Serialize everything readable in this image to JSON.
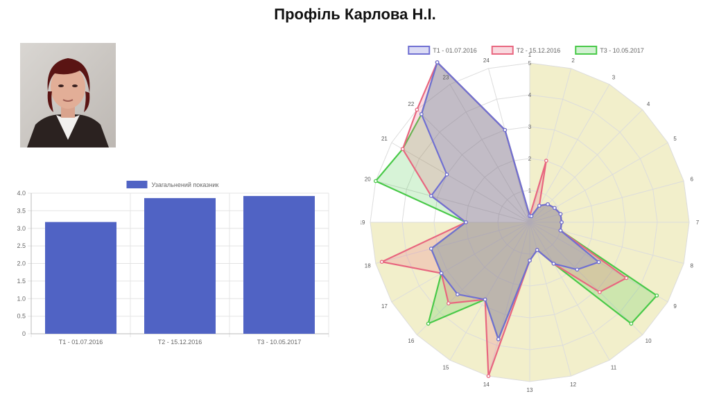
{
  "page": {
    "title": "Профіль Карлова Н.І."
  },
  "photo": {
    "alt": "Фото"
  },
  "chart_data": [
    {
      "type": "bar",
      "legend": [
        "Узагальнений показник"
      ],
      "legend_position": "top",
      "categories": [
        "Т1 - 01.07.2016",
        "Т2 - 15.12.2016",
        "Т3 - 10.05.2017"
      ],
      "series": [
        {
          "name": "Узагальнений показник",
          "values": [
            3.18,
            3.86,
            3.92
          ],
          "color": "#5063C4"
        }
      ],
      "ylim": [
        0,
        4
      ],
      "yticks": [
        "0",
        "0.5",
        "1.0",
        "1.5",
        "2.0",
        "2.5",
        "3.0",
        "3.5",
        "4.0"
      ],
      "grid": true
    },
    {
      "type": "radar",
      "legend_position": "top",
      "axes": [
        "1",
        "2",
        "3",
        "4",
        "5",
        "6",
        "7",
        "8",
        "9",
        "10",
        "11",
        "12",
        "13",
        "14",
        "15",
        "16",
        "17",
        "18",
        "19",
        "20",
        "21",
        "22",
        "23",
        "24"
      ],
      "rlim": [
        0,
        5
      ],
      "rticks": [
        "1",
        "2",
        "3",
        "4",
        "5"
      ],
      "highlight_color": "#F2EFCB",
      "highlighted_axes": [
        "1",
        "2",
        "3",
        "4",
        "5",
        "6",
        "7",
        "8",
        "9",
        "10",
        "11",
        "12",
        "13",
        "14",
        "15",
        "16",
        "17",
        "18"
      ],
      "series": [
        {
          "name": "Т1 - 01.07.2016",
          "color": "#6F6FD2",
          "values": [
            0.2,
            0.2,
            0.6,
            0.8,
            0.9,
            1.0,
            1.0,
            1.0,
            2.5,
            2.1,
            1.5,
            0.9,
            1.2,
            3.8,
            2.8,
            3.2,
            3.2,
            3.2,
            2.0,
            3.2,
            3.0,
            4.8,
            5.8,
            3.0
          ]
        },
        {
          "name": "Т2 - 15.12.2016",
          "color": "#E8667F",
          "values": [
            0.2,
            2.0,
            0.6,
            0.8,
            0.9,
            1.0,
            1.0,
            1.0,
            3.5,
            3.1,
            1.5,
            0.9,
            1.2,
            5.0,
            2.8,
            3.6,
            3.2,
            4.8,
            2.0,
            3.2,
            4.6,
            5.0,
            5.8,
            3.0
          ]
        },
        {
          "name": "Т3 - 10.05.2017",
          "color": "#48C948",
          "values": [
            0.2,
            0.2,
            0.6,
            0.8,
            0.9,
            1.0,
            1.0,
            1.0,
            4.6,
            4.5,
            1.5,
            0.9,
            1.2,
            3.8,
            2.8,
            4.5,
            3.2,
            3.2,
            2.0,
            5.0,
            4.6,
            4.8,
            5.8,
            3.0
          ]
        }
      ]
    }
  ]
}
